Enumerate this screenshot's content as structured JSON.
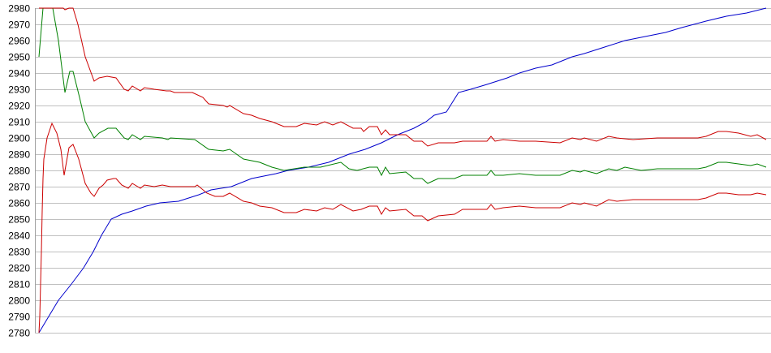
{
  "chart_data": {
    "type": "line",
    "title": "",
    "xlabel": "",
    "ylabel": "",
    "xlim": [
      0,
      180
    ],
    "ylim": [
      2780,
      2980
    ],
    "y_ticks": [
      2980,
      2970,
      2960,
      2950,
      2940,
      2930,
      2920,
      2910,
      2900,
      2890,
      2880,
      2870,
      2860,
      2850,
      2840,
      2830,
      2820,
      2810,
      2800,
      2790,
      2780
    ],
    "grid": "horizontal",
    "legend": "none",
    "series": [
      {
        "color": "#0000cc",
        "points": [
          [
            0,
            2780
          ],
          [
            2.4,
            2790
          ],
          [
            4.8,
            2800
          ],
          [
            8,
            2810
          ],
          [
            11,
            2820
          ],
          [
            13.4,
            2830
          ],
          [
            15.4,
            2840
          ],
          [
            17.8,
            2850
          ],
          [
            20.4,
            2853
          ],
          [
            23,
            2855
          ],
          [
            26.4,
            2858
          ],
          [
            29.8,
            2860
          ],
          [
            34.4,
            2861
          ],
          [
            39.4,
            2865
          ],
          [
            42.4,
            2868
          ],
          [
            47.4,
            2870
          ],
          [
            52.4,
            2875
          ],
          [
            58.4,
            2878
          ],
          [
            61.4,
            2880
          ],
          [
            66.4,
            2882
          ],
          [
            71.4,
            2885
          ],
          [
            76.4,
            2890
          ],
          [
            80.4,
            2893
          ],
          [
            84.4,
            2897
          ],
          [
            88.4,
            2902
          ],
          [
            92.4,
            2906
          ],
          [
            95.4,
            2910
          ],
          [
            97.4,
            2914
          ],
          [
            100.4,
            2916
          ],
          [
            103.4,
            2928
          ],
          [
            106.4,
            2930
          ],
          [
            110.4,
            2933
          ],
          [
            115.4,
            2937
          ],
          [
            118.4,
            2940
          ],
          [
            122.4,
            2943
          ],
          [
            126.4,
            2945
          ],
          [
            131.4,
            2950
          ],
          [
            134.4,
            2952
          ],
          [
            139.4,
            2956
          ],
          [
            144.4,
            2960
          ],
          [
            148.4,
            2962
          ],
          [
            154.4,
            2965
          ],
          [
            158.4,
            2968
          ],
          [
            164.4,
            2972
          ],
          [
            169.4,
            2975
          ],
          [
            174.4,
            2977
          ],
          [
            179.2,
            2980
          ]
        ]
      },
      {
        "color": "#008000",
        "points": [
          [
            0,
            2950
          ],
          [
            1,
            2980
          ],
          [
            3.4,
            2980
          ],
          [
            4.8,
            2960
          ],
          [
            6.4,
            2928
          ],
          [
            7.6,
            2941
          ],
          [
            8.4,
            2941
          ],
          [
            10,
            2925
          ],
          [
            11.4,
            2910
          ],
          [
            13.6,
            2900
          ],
          [
            14.8,
            2903
          ],
          [
            17,
            2906
          ],
          [
            19,
            2906
          ],
          [
            21,
            2900
          ],
          [
            22,
            2899
          ],
          [
            23,
            2902
          ],
          [
            25,
            2899
          ],
          [
            26,
            2901
          ],
          [
            30.4,
            2900
          ],
          [
            31.8,
            2899
          ],
          [
            32.4,
            2900
          ],
          [
            38.4,
            2899
          ],
          [
            41.8,
            2893
          ],
          [
            45.4,
            2892
          ],
          [
            47,
            2893
          ],
          [
            50.4,
            2887
          ],
          [
            54.4,
            2885
          ],
          [
            57.4,
            2882
          ],
          [
            60.4,
            2880
          ],
          [
            65.4,
            2882
          ],
          [
            69.4,
            2882
          ],
          [
            74.4,
            2885
          ],
          [
            76.4,
            2881
          ],
          [
            78.4,
            2880
          ],
          [
            81.4,
            2882
          ],
          [
            83.4,
            2882
          ],
          [
            84.4,
            2877
          ],
          [
            85.4,
            2882
          ],
          [
            86.4,
            2878
          ],
          [
            90.4,
            2879
          ],
          [
            92.4,
            2875
          ],
          [
            94.4,
            2875
          ],
          [
            95.8,
            2872
          ],
          [
            98.4,
            2875
          ],
          [
            102.4,
            2875
          ],
          [
            104.4,
            2877
          ],
          [
            110.4,
            2877
          ],
          [
            111.4,
            2880
          ],
          [
            112.4,
            2877
          ],
          [
            114.4,
            2877
          ],
          [
            118.4,
            2878
          ],
          [
            122.4,
            2877
          ],
          [
            128.4,
            2877
          ],
          [
            131.4,
            2880
          ],
          [
            133.4,
            2879
          ],
          [
            134.4,
            2880
          ],
          [
            137.4,
            2878
          ],
          [
            140.4,
            2881
          ],
          [
            142.4,
            2880
          ],
          [
            144.4,
            2882
          ],
          [
            148.4,
            2880
          ],
          [
            152.4,
            2881
          ],
          [
            162.4,
            2881
          ],
          [
            164.4,
            2882
          ],
          [
            167.4,
            2885
          ],
          [
            169.4,
            2885
          ],
          [
            172.4,
            2884
          ],
          [
            175.4,
            2883
          ],
          [
            177,
            2884
          ],
          [
            179.2,
            2882
          ]
        ]
      },
      {
        "color": "#cc0000",
        "points": [
          [
            0,
            2980
          ],
          [
            6,
            2980
          ],
          [
            6.4,
            2979
          ],
          [
            7.4,
            2980
          ],
          [
            8.4,
            2980
          ],
          [
            9.6,
            2970
          ],
          [
            11.4,
            2950
          ],
          [
            13.6,
            2935
          ],
          [
            14.8,
            2937
          ],
          [
            16.8,
            2938
          ],
          [
            19,
            2937
          ],
          [
            21,
            2930
          ],
          [
            22,
            2929
          ],
          [
            23,
            2932
          ],
          [
            25,
            2929
          ],
          [
            26,
            2931
          ],
          [
            28.4,
            2930
          ],
          [
            31.4,
            2929
          ],
          [
            32.4,
            2929
          ],
          [
            33.4,
            2928
          ],
          [
            37.8,
            2928
          ],
          [
            40.4,
            2925
          ],
          [
            41.8,
            2921
          ],
          [
            45.4,
            2920
          ],
          [
            46.4,
            2919
          ],
          [
            47,
            2920
          ],
          [
            50.4,
            2915
          ],
          [
            52.4,
            2914
          ],
          [
            54.4,
            2912
          ],
          [
            57.4,
            2910
          ],
          [
            60.4,
            2907
          ],
          [
            63.4,
            2907
          ],
          [
            65.4,
            2909
          ],
          [
            68.4,
            2908
          ],
          [
            70.4,
            2910
          ],
          [
            72.4,
            2908
          ],
          [
            74.4,
            2910
          ],
          [
            77.4,
            2906
          ],
          [
            79.4,
            2906
          ],
          [
            80,
            2904
          ],
          [
            81.4,
            2907
          ],
          [
            83.4,
            2907
          ],
          [
            84.4,
            2902
          ],
          [
            85.4,
            2905
          ],
          [
            86.4,
            2902
          ],
          [
            90.4,
            2902
          ],
          [
            92.4,
            2898
          ],
          [
            94.4,
            2898
          ],
          [
            95.8,
            2895
          ],
          [
            98.4,
            2897
          ],
          [
            102.4,
            2897
          ],
          [
            104.4,
            2898
          ],
          [
            110.4,
            2898
          ],
          [
            111.4,
            2901
          ],
          [
            112.4,
            2898
          ],
          [
            114.4,
            2899
          ],
          [
            118.4,
            2898
          ],
          [
            122.4,
            2898
          ],
          [
            128.4,
            2897
          ],
          [
            131.4,
            2900
          ],
          [
            133.4,
            2899
          ],
          [
            134.4,
            2900
          ],
          [
            137.4,
            2898
          ],
          [
            140.4,
            2901
          ],
          [
            142.4,
            2900
          ],
          [
            146.4,
            2899
          ],
          [
            152.4,
            2900
          ],
          [
            162.4,
            2900
          ],
          [
            164.4,
            2901
          ],
          [
            167.4,
            2904
          ],
          [
            169.4,
            2904
          ],
          [
            172.4,
            2903
          ],
          [
            175.4,
            2901
          ],
          [
            177,
            2902
          ],
          [
            179.2,
            2899
          ]
        ]
      },
      {
        "color": "#cc0000",
        "points": [
          [
            0,
            2780
          ],
          [
            0.2,
            2790
          ],
          [
            0.4,
            2810
          ],
          [
            0.6,
            2830
          ],
          [
            0.8,
            2855
          ],
          [
            1,
            2875
          ],
          [
            1.2,
            2887
          ],
          [
            2,
            2900
          ],
          [
            3.2,
            2909
          ],
          [
            4.4,
            2903
          ],
          [
            5.4,
            2893
          ],
          [
            6.2,
            2877
          ],
          [
            7.4,
            2894
          ],
          [
            8.4,
            2896
          ],
          [
            9.8,
            2887
          ],
          [
            11.4,
            2872
          ],
          [
            12.8,
            2866
          ],
          [
            13.6,
            2864
          ],
          [
            14.8,
            2869
          ],
          [
            15.8,
            2871
          ],
          [
            16.8,
            2874
          ],
          [
            18.4,
            2875
          ],
          [
            19,
            2875
          ],
          [
            20.4,
            2871
          ],
          [
            22,
            2869
          ],
          [
            23,
            2872
          ],
          [
            25,
            2869
          ],
          [
            26,
            2871
          ],
          [
            28.4,
            2870
          ],
          [
            30.4,
            2871
          ],
          [
            32.4,
            2870
          ],
          [
            38.4,
            2870
          ],
          [
            39,
            2871
          ],
          [
            41.4,
            2866
          ],
          [
            43.4,
            2864
          ],
          [
            45.4,
            2864
          ],
          [
            47,
            2866
          ],
          [
            50.4,
            2861
          ],
          [
            52.4,
            2860
          ],
          [
            54.4,
            2858
          ],
          [
            57.4,
            2857
          ],
          [
            60.4,
            2854
          ],
          [
            63.4,
            2854
          ],
          [
            65.4,
            2856
          ],
          [
            68.4,
            2855
          ],
          [
            70.4,
            2857
          ],
          [
            72.4,
            2856
          ],
          [
            74.4,
            2859
          ],
          [
            77.4,
            2855
          ],
          [
            79.4,
            2856
          ],
          [
            81.4,
            2858
          ],
          [
            83.4,
            2858
          ],
          [
            84.4,
            2853
          ],
          [
            85.4,
            2857
          ],
          [
            86.4,
            2855
          ],
          [
            90.4,
            2856
          ],
          [
            92.4,
            2852
          ],
          [
            94.4,
            2852
          ],
          [
            95.8,
            2849
          ],
          [
            98.4,
            2852
          ],
          [
            102.4,
            2853
          ],
          [
            104.4,
            2856
          ],
          [
            110.4,
            2856
          ],
          [
            111.4,
            2859
          ],
          [
            112.4,
            2856
          ],
          [
            114.4,
            2857
          ],
          [
            118.4,
            2858
          ],
          [
            122.4,
            2857
          ],
          [
            128.4,
            2857
          ],
          [
            131.4,
            2860
          ],
          [
            133.4,
            2859
          ],
          [
            134.4,
            2860
          ],
          [
            137.4,
            2858
          ],
          [
            140.4,
            2862
          ],
          [
            142.4,
            2861
          ],
          [
            146.4,
            2862
          ],
          [
            152.4,
            2862
          ],
          [
            162.4,
            2862
          ],
          [
            164.4,
            2863
          ],
          [
            167.4,
            2866
          ],
          [
            169.4,
            2866
          ],
          [
            172.4,
            2865
          ],
          [
            175.4,
            2865
          ],
          [
            177,
            2866
          ],
          [
            179.2,
            2865
          ]
        ]
      }
    ]
  }
}
